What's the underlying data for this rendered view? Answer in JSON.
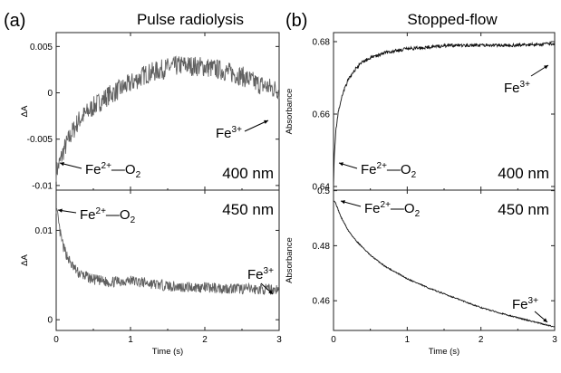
{
  "panel_labels": [
    "(a)",
    "(b)"
  ],
  "colors": {
    "pulse_trace": "#606060",
    "stopped_trace": "#111111",
    "axes": "#222222"
  },
  "chart_data": [
    {
      "type": "line",
      "title": "Pulse radiolysis",
      "wavelength": "400 nm",
      "xlabel": "",
      "ylabel": "ΔA",
      "xlim": [
        0,
        3
      ],
      "ylim": [
        -0.0105,
        0.0065
      ],
      "xticks": [
        "0",
        "1",
        "2",
        "3"
      ],
      "yticks": [
        {
          "v": -0.01,
          "t": "-0.01"
        },
        {
          "v": -0.005,
          "t": "-0.005"
        },
        {
          "v": 0,
          "t": "0"
        },
        {
          "v": 0.005,
          "t": "0.005"
        }
      ],
      "grid": false,
      "series": [
        {
          "x": [
            0,
            0.05,
            0.1,
            0.2,
            0.3,
            0.5,
            0.7,
            1.0,
            1.2,
            1.5,
            1.7,
            2.0,
            2.2,
            2.5,
            2.7,
            2.9,
            3.0
          ],
          "y": [
            -0.0085,
            -0.0075,
            -0.0062,
            -0.0045,
            -0.003,
            -0.0015,
            -0.0003,
            0.001,
            0.002,
            0.0027,
            0.003,
            0.0028,
            0.0025,
            0.0018,
            0.001,
            0.0005,
            0.0003
          ]
        }
      ],
      "annotations": [
        {
          "text": "Fe",
          "sup": "3+",
          "sub": ""
        },
        {
          "text": "Fe",
          "sup": "2+",
          "sub": "2",
          "mid": "—O"
        }
      ]
    },
    {
      "type": "line",
      "title": "",
      "wavelength": "450 nm",
      "xlabel": "Time (s)",
      "ylabel": "ΔA",
      "xlim": [
        0,
        3
      ],
      "ylim": [
        -0.0012,
        0.0145
      ],
      "xticks": [
        "0",
        "1",
        "2",
        "3"
      ],
      "yticks": [
        {
          "v": 0,
          "t": "0"
        },
        {
          "v": 0.01,
          "t": "0.01"
        }
      ],
      "grid": false,
      "series": [
        {
          "x": [
            0,
            0.02,
            0.05,
            0.1,
            0.2,
            0.3,
            0.5,
            0.7,
            1.0,
            1.3,
            1.6,
            2.0,
            2.4,
            2.7,
            3.0
          ],
          "y": [
            0.0125,
            0.0115,
            0.0098,
            0.008,
            0.0062,
            0.0052,
            0.0045,
            0.0042,
            0.0044,
            0.004,
            0.0037,
            0.0036,
            0.0035,
            0.0034,
            0.0034
          ]
        }
      ],
      "annotations": [
        {
          "text": "Fe",
          "sup": "2+",
          "sub": "2",
          "mid": "—O"
        },
        {
          "text": "Fe",
          "sup": "3+",
          "sub": ""
        }
      ]
    },
    {
      "type": "line",
      "title": "Stopped-flow",
      "wavelength": "400 nm",
      "xlabel": "",
      "ylabel": "Absorbance",
      "xlim": [
        0,
        3
      ],
      "ylim": [
        0.639,
        0.6825
      ],
      "xticks": [
        "0",
        "1",
        "2",
        "3"
      ],
      "yticks": [
        {
          "v": 0.64,
          "t": "0.64"
        },
        {
          "v": 0.66,
          "t": "0.66"
        },
        {
          "v": 0.68,
          "t": "0.68"
        }
      ],
      "grid": false,
      "series": [
        {
          "x": [
            0,
            0.01,
            0.03,
            0.06,
            0.1,
            0.15,
            0.2,
            0.3,
            0.4,
            0.5,
            0.7,
            1.0,
            1.3,
            1.6,
            2.0,
            2.4,
            2.8,
            3.0
          ],
          "y": [
            0.641,
            0.648,
            0.655,
            0.66,
            0.664,
            0.667,
            0.6695,
            0.6725,
            0.6745,
            0.6755,
            0.677,
            0.678,
            0.6785,
            0.679,
            0.679,
            0.679,
            0.6792,
            0.6795
          ]
        }
      ],
      "annotations": [
        {
          "text": "Fe",
          "sup": "3+",
          "sub": ""
        },
        {
          "text": "Fe",
          "sup": "2+",
          "sub": "2",
          "mid": "—O"
        }
      ]
    },
    {
      "type": "line",
      "title": "",
      "wavelength": "450 nm",
      "xlabel": "Time (s)",
      "ylabel": "Absorbance",
      "xlim": [
        0,
        3
      ],
      "ylim": [
        0.4492,
        0.5002
      ],
      "xticks": [
        "0",
        "1",
        "2",
        "3"
      ],
      "yticks": [
        {
          "v": 0.46,
          "t": "0.46"
        },
        {
          "v": 0.48,
          "t": "0.48"
        },
        {
          "v": 0.5,
          "t": "0.5"
        }
      ],
      "grid": false,
      "series": [
        {
          "x": [
            0,
            0.02,
            0.05,
            0.1,
            0.2,
            0.3,
            0.5,
            0.7,
            1.0,
            1.3,
            1.6,
            2.0,
            2.4,
            2.8,
            3.0
          ],
          "y": [
            0.4965,
            0.496,
            0.494,
            0.4905,
            0.4855,
            0.482,
            0.4765,
            0.4725,
            0.468,
            0.4645,
            0.4615,
            0.4575,
            0.4545,
            0.4518,
            0.4505
          ]
        }
      ],
      "annotations": [
        {
          "text": "Fe",
          "sup": "2+",
          "sub": "2",
          "mid": "—O"
        },
        {
          "text": "Fe",
          "sup": "3+",
          "sub": ""
        }
      ]
    }
  ]
}
